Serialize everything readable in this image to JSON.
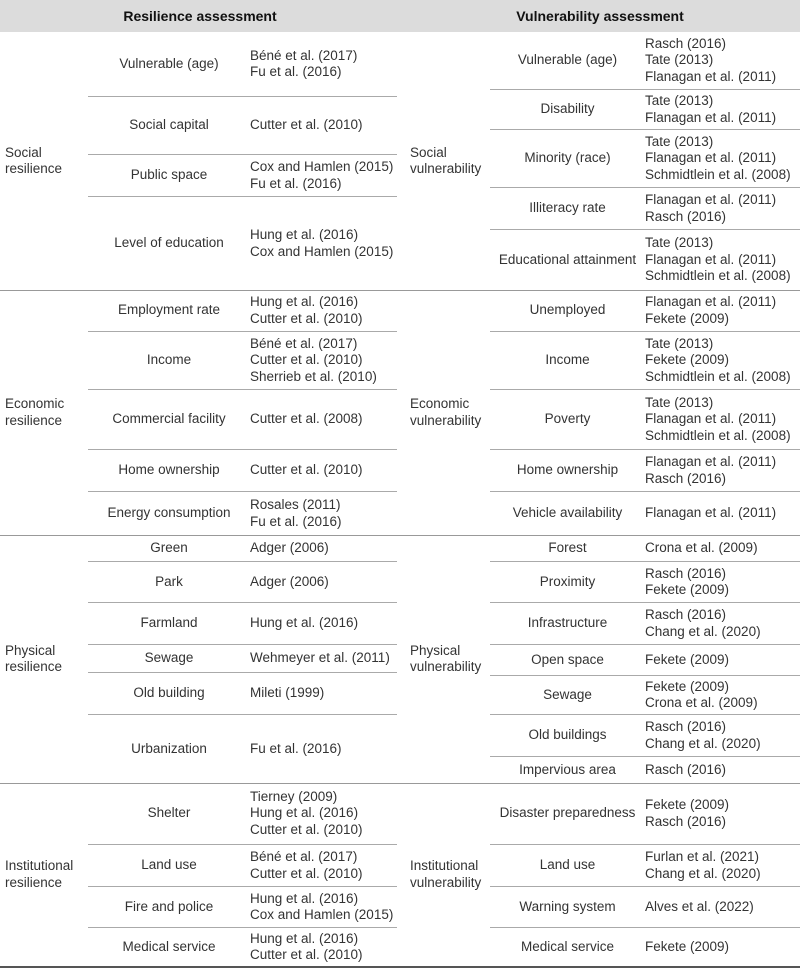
{
  "headers": {
    "left": "Resilience assessment",
    "right": "Vulnerability assessment"
  },
  "left": [
    {
      "category": "Social resilience",
      "rows": [
        {
          "factor": "Vulnerable (age)",
          "refs": [
            "Béné et al. (2017)",
            "Fu et al. (2016)"
          ]
        },
        {
          "factor": "Social capital",
          "refs": [
            "Cutter et al. (2010)"
          ]
        },
        {
          "factor": "Public space",
          "refs": [
            "Cox and Hamlen (2015)",
            "Fu et al. (2016)"
          ]
        },
        {
          "factor": "Level of education",
          "refs": [
            "Hung et al. (2016)",
            "Cox and Hamlen (2015)"
          ]
        }
      ]
    },
    {
      "category": "Economic resilience",
      "rows": [
        {
          "factor": "Employment rate",
          "refs": [
            "Hung et al. (2016)",
            "Cutter et al. (2010)"
          ]
        },
        {
          "factor": "Income",
          "refs": [
            "Béné et al. (2017)",
            "Cutter et al. (2010)",
            "Sherrieb et al. (2010)"
          ]
        },
        {
          "factor": "Commercial facility",
          "refs": [
            "Cutter et al. (2008)"
          ]
        },
        {
          "factor": "Home ownership",
          "refs": [
            "Cutter et al. (2010)"
          ]
        },
        {
          "factor": "Energy consumption",
          "refs": [
            "Rosales (2011)",
            "Fu et al. (2016)"
          ]
        }
      ]
    },
    {
      "category": "Physical resilience",
      "rows": [
        {
          "factor": "Green",
          "refs": [
            "Adger (2006)"
          ]
        },
        {
          "factor": "Park",
          "refs": [
            "Adger (2006)"
          ]
        },
        {
          "factor": "Farmland",
          "refs": [
            "Hung et al. (2016)"
          ]
        },
        {
          "factor": "Sewage",
          "refs": [
            "Wehmeyer et al. (2011)"
          ]
        },
        {
          "factor": "Old building",
          "refs": [
            "Mileti (1999)"
          ]
        },
        {
          "factor": "Urbanization",
          "refs": [
            "Fu et al. (2016)"
          ]
        }
      ]
    },
    {
      "category": "Institutional resilience",
      "rows": [
        {
          "factor": "Shelter",
          "refs": [
            "Tierney (2009)",
            "Hung et al. (2016)",
            "Cutter et al. (2010)"
          ]
        },
        {
          "factor": "Land use",
          "refs": [
            "Béné et al. (2017)",
            "Cutter et al. (2010)"
          ]
        },
        {
          "factor": "Fire and police",
          "refs": [
            "Hung et al. (2016)",
            "Cox and Hamlen (2015)"
          ]
        },
        {
          "factor": "Medical service",
          "refs": [
            "Hung et al. (2016)",
            "Cutter et al. (2010)"
          ]
        }
      ]
    }
  ],
  "right": [
    {
      "category": "Social vulnerability",
      "rows": [
        {
          "factor": "Vulnerable (age)",
          "refs": [
            "Rasch (2016)",
            "Tate (2013)",
            "Flanagan et al. (2011)"
          ]
        },
        {
          "factor": "Disability",
          "refs": [
            "Tate (2013)",
            "Flanagan et al. (2011)"
          ]
        },
        {
          "factor": "Minority (race)",
          "refs": [
            "Tate (2013)",
            "Flanagan et al. (2011)",
            "Schmidtlein et al. (2008)"
          ]
        },
        {
          "factor": "Illiteracy rate",
          "refs": [
            "Flanagan et al. (2011)",
            "Rasch (2016)"
          ]
        },
        {
          "factor": "Educational attainment",
          "refs": [
            "Tate (2013)",
            "Flanagan et al. (2011)",
            "Schmidtlein et al. (2008)"
          ]
        }
      ]
    },
    {
      "category": "Economic vulnerability",
      "rows": [
        {
          "factor": "Unemployed",
          "refs": [
            "Flanagan et al. (2011)",
            "Fekete (2009)"
          ]
        },
        {
          "factor": "Income",
          "refs": [
            "Tate (2013)",
            "Fekete (2009)",
            "Schmidtlein et al. (2008)"
          ]
        },
        {
          "factor": "Poverty",
          "refs": [
            "Tate (2013)",
            "Flanagan et al. (2011)",
            "Schmidtlein et al. (2008)"
          ]
        },
        {
          "factor": "Home ownership",
          "refs": [
            "Flanagan et al. (2011)",
            "Rasch (2016)"
          ]
        },
        {
          "factor": "Vehicle availability",
          "refs": [
            "Flanagan et al. (2011)"
          ]
        }
      ]
    },
    {
      "category": "Physical vulnerability",
      "rows": [
        {
          "factor": "Forest",
          "refs": [
            "Crona et al. (2009)"
          ]
        },
        {
          "factor": "Proximity",
          "refs": [
            "Rasch (2016)",
            "Fekete (2009)"
          ]
        },
        {
          "factor": "Infrastructure",
          "refs": [
            "Rasch (2016)",
            "Chang et al. (2020)"
          ]
        },
        {
          "factor": "Open space",
          "refs": [
            "Fekete (2009)"
          ]
        },
        {
          "factor": "Sewage",
          "refs": [
            "Fekete (2009)",
            "Crona et al. (2009)"
          ]
        },
        {
          "factor": "Old buildings",
          "refs": [
            "Rasch (2016)",
            "Chang et al. (2020)"
          ]
        },
        {
          "factor": "Impervious area",
          "refs": [
            "Rasch (2016)"
          ]
        }
      ]
    },
    {
      "category": "Institutional vulnerability",
      "rows": [
        {
          "factor": "Disaster preparedness",
          "refs": [
            "Fekete (2009)",
            "Rasch (2016)"
          ]
        },
        {
          "factor": "Land use",
          "refs": [
            "Furlan et al. (2021)",
            "Chang et al. (2020)"
          ]
        },
        {
          "factor": "Warning system",
          "refs": [
            "Alves et al. (2022)"
          ]
        },
        {
          "factor": "Medical service",
          "refs": [
            "Fekete (2009)"
          ]
        }
      ]
    }
  ]
}
